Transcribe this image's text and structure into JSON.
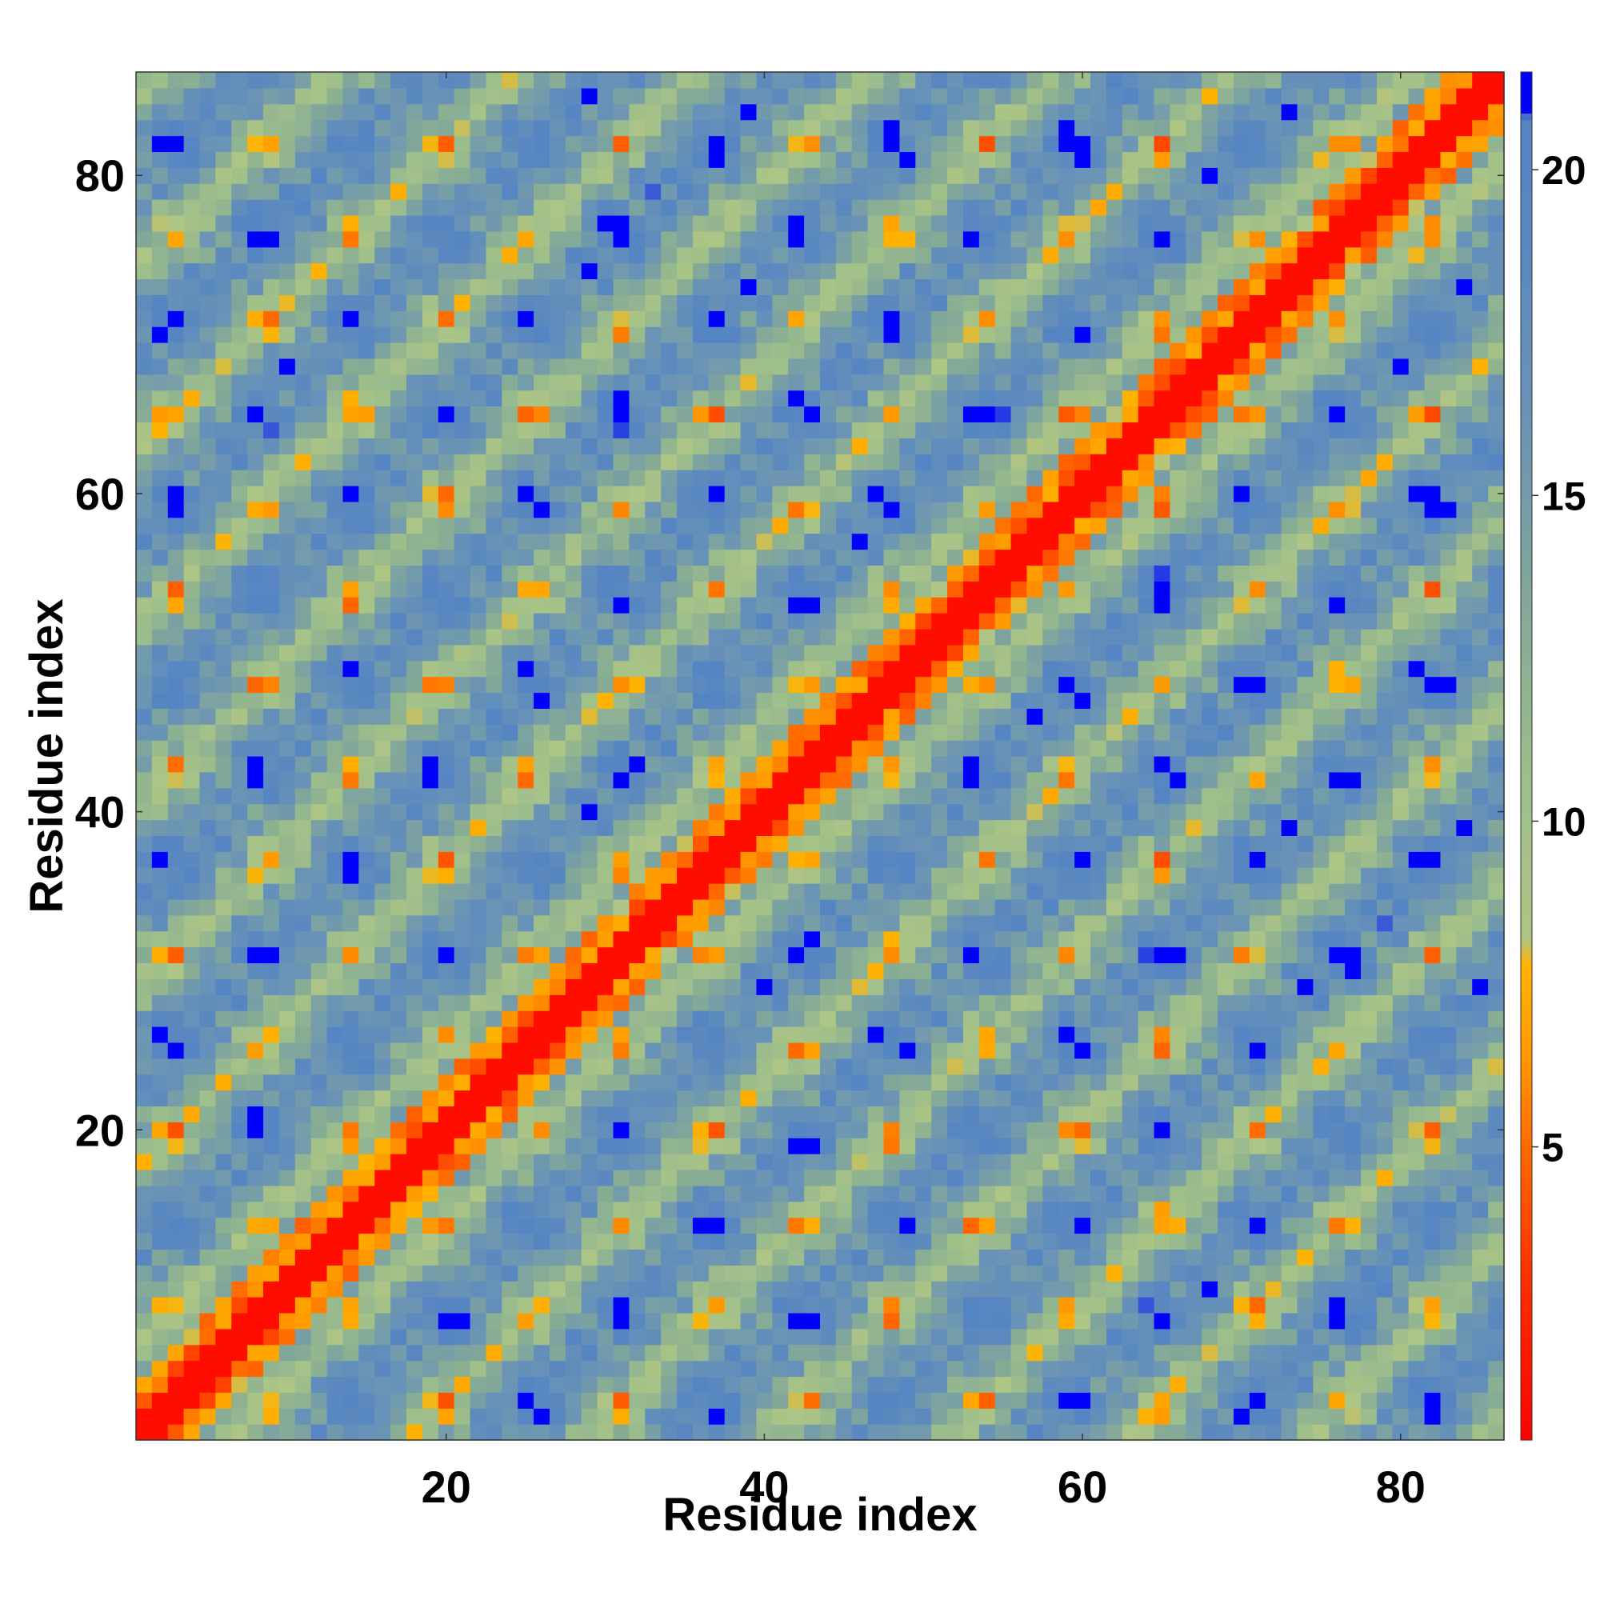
{
  "chart_data": {
    "type": "heatmap",
    "title": "",
    "xlabel": "Residue index",
    "ylabel": "Residue index",
    "xlim": [
      1,
      86
    ],
    "ylim": [
      1,
      86
    ],
    "n_residues": 86,
    "x_ticks": [
      20,
      40,
      60,
      80
    ],
    "y_ticks": [
      20,
      40,
      60,
      80
    ],
    "colorbar": {
      "ticks": [
        5,
        10,
        15,
        20
      ],
      "range": [
        0.5,
        21.5
      ],
      "orientation": "vertical",
      "placement": "right"
    },
    "colormap_stops": [
      {
        "v": 0.5,
        "color": "#ff0000"
      },
      {
        "v": 3.0,
        "color": "#ff3000"
      },
      {
        "v": 5.0,
        "color": "#ff6a00"
      },
      {
        "v": 6.5,
        "color": "#ff9a00"
      },
      {
        "v": 7.8,
        "color": "#ffb300"
      },
      {
        "v": 8.2,
        "color": "#aec585"
      },
      {
        "v": 10.5,
        "color": "#9fbf8a"
      },
      {
        "v": 13.0,
        "color": "#86ab95"
      },
      {
        "v": 16.0,
        "color": "#6b94b5"
      },
      {
        "v": 20.0,
        "color": "#5585c3"
      },
      {
        "v": 20.8,
        "color": "#5585c3"
      },
      {
        "v": 20.9,
        "color": "#0000ff"
      },
      {
        "v": 21.5,
        "color": "#0000ff"
      }
    ],
    "structure": {
      "description": "Symmetric residue distance matrix of a helical protein",
      "helix_period": 11.3,
      "diagonal_contact": "red",
      "anti_diagonal_contacts": "orange",
      "far_domains": "blue"
    }
  }
}
